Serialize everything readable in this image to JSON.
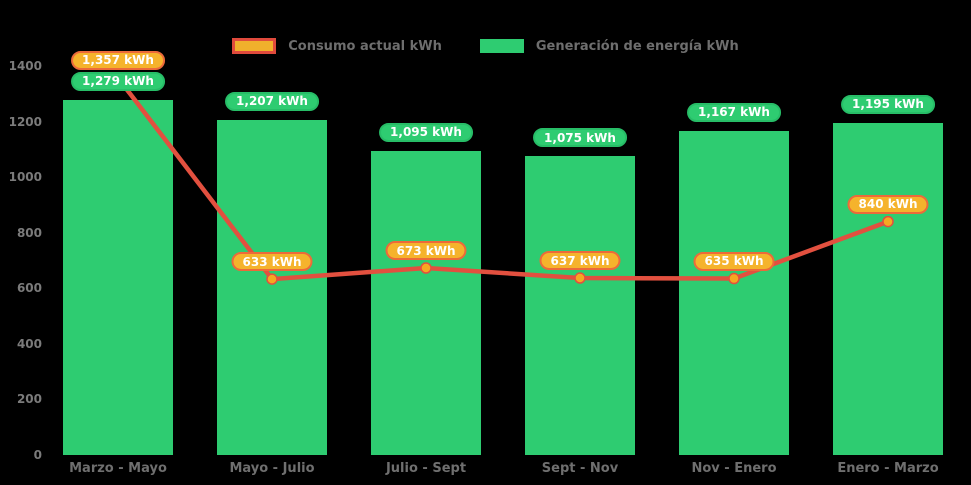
{
  "legend": {
    "items": [
      {
        "label": "Consumo actual kWh",
        "swatch": "line"
      },
      {
        "label": "Generación de energía kWh",
        "swatch": "bar"
      }
    ]
  },
  "colors": {
    "background": "#000000",
    "bar": "#2ecc71",
    "bar_badge_fill": "#2ecc71",
    "bar_badge_border": "#27bd67",
    "line": "#e2503f",
    "marker_fill": "#f6a821",
    "line_badge_fill": "#f5b32c",
    "line_badge_border": "#ec6a3a",
    "axis_text": "#7b7b7b",
    "legend_text": "#6e6e6e"
  },
  "chart_data": {
    "type": "bar",
    "categories": [
      "Marzo - Mayo",
      "Mayo - Julio",
      "Julio - Sept",
      "Sept - Nov",
      "Nov - Enero",
      "Enero - Marzo"
    ],
    "series": [
      {
        "name": "Consumo actual kWh",
        "type": "line",
        "color": "#e2503f",
        "values": [
          1357,
          633,
          673,
          637,
          635,
          840
        ],
        "labels": [
          "1,357 kWh",
          "633 kWh",
          "673 kWh",
          "637 kWh",
          "635 kWh",
          "840 kWh"
        ]
      },
      {
        "name": "Generación de energía kWh",
        "type": "bar",
        "color": "#2ecc71",
        "values": [
          1279,
          1207,
          1095,
          1075,
          1167,
          1195
        ],
        "labels": [
          "1,279 kWh",
          "1,207 kWh",
          "1,095 kWh",
          "1,075 kWh",
          "1,167 kWh",
          "1,195 kWh"
        ]
      }
    ],
    "title": "",
    "xlabel": "",
    "ylabel": "",
    "ylim": [
      0,
      1400
    ],
    "yticks": [
      0,
      200,
      400,
      600,
      800,
      1000,
      1200,
      1400
    ],
    "grid": false,
    "legend_position": "top"
  }
}
